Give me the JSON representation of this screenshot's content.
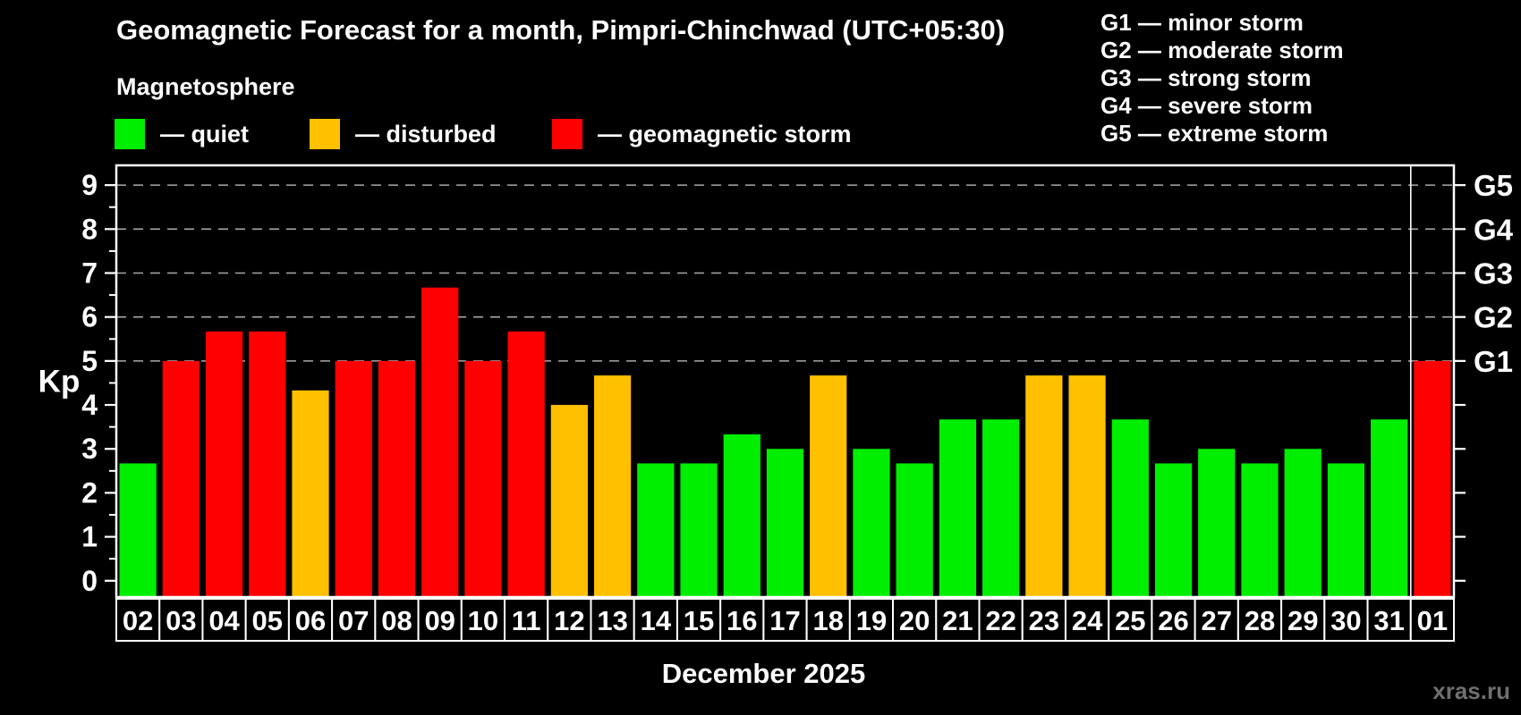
{
  "header": {
    "title": "Geomagnetic Forecast for a month, Pimpri-Chinchwad (UTC+05:30)",
    "subtitle": "Magnetosphere"
  },
  "legend": {
    "items": [
      {
        "label": "— quiet",
        "level": "quiet"
      },
      {
        "label": "— disturbed",
        "level": "disturbed"
      },
      {
        "label": "— geomagnetic storm",
        "level": "storm"
      }
    ]
  },
  "g_scale_legend": [
    "G1 — minor storm",
    "G2 — moderate storm",
    "G3 — strong storm",
    "G4 — severe storm",
    "G5 — extreme storm"
  ],
  "footer": {
    "month_label": "December 2025",
    "watermark": "xras.ru"
  },
  "chart_data": {
    "type": "bar",
    "title": "Geomagnetic Forecast for a month, Pimpri-Chinchwad (UTC+05:30)",
    "xlabel": "December 2025",
    "ylabel": "Kp",
    "categories": [
      "02",
      "03",
      "04",
      "05",
      "06",
      "07",
      "08",
      "09",
      "10",
      "11",
      "12",
      "13",
      "14",
      "15",
      "16",
      "17",
      "18",
      "19",
      "20",
      "21",
      "22",
      "23",
      "24",
      "25",
      "26",
      "27",
      "28",
      "29",
      "30",
      "31",
      "01"
    ],
    "values": [
      2.67,
      5.0,
      5.67,
      5.67,
      4.33,
      5.0,
      5.0,
      6.67,
      5.0,
      5.67,
      4.0,
      4.67,
      2.67,
      2.67,
      3.33,
      3.0,
      4.67,
      3.0,
      2.67,
      3.67,
      3.67,
      4.67,
      4.67,
      3.67,
      2.67,
      3.0,
      2.67,
      3.0,
      2.67,
      3.67,
      5.0
    ],
    "levels": [
      "quiet",
      "storm",
      "storm",
      "storm",
      "disturbed",
      "storm",
      "storm",
      "storm",
      "storm",
      "storm",
      "disturbed",
      "disturbed",
      "quiet",
      "quiet",
      "quiet",
      "quiet",
      "disturbed",
      "quiet",
      "quiet",
      "quiet",
      "quiet",
      "disturbed",
      "disturbed",
      "quiet",
      "quiet",
      "quiet",
      "quiet",
      "quiet",
      "quiet",
      "quiet",
      "storm"
    ],
    "colors": {
      "quiet": "#00ee00",
      "disturbed": "#ffc000",
      "storm": "#ff0000"
    },
    "level_thresholds": {
      "disturbed_min_kp": 4,
      "storm_min_kp": 5
    },
    "y_axis": {
      "ticks": [
        0,
        1,
        2,
        3,
        4,
        5,
        6,
        7,
        8,
        9
      ],
      "minor_tick_step": 0.5,
      "range": [
        -0.37,
        9.45
      ]
    },
    "right_axis_labels": [
      {
        "kp": 5,
        "label": "G1"
      },
      {
        "kp": 6,
        "label": "G2"
      },
      {
        "kp": 7,
        "label": "G3"
      },
      {
        "kp": 8,
        "label": "G4"
      },
      {
        "kp": 9,
        "label": "G5"
      }
    ],
    "gridlines_kp": [
      5,
      6,
      7,
      8,
      9
    ],
    "grid": "dashed gray horizontal lines at storm levels only",
    "legend_position": "top-left",
    "month_separator_before_category": "01"
  }
}
